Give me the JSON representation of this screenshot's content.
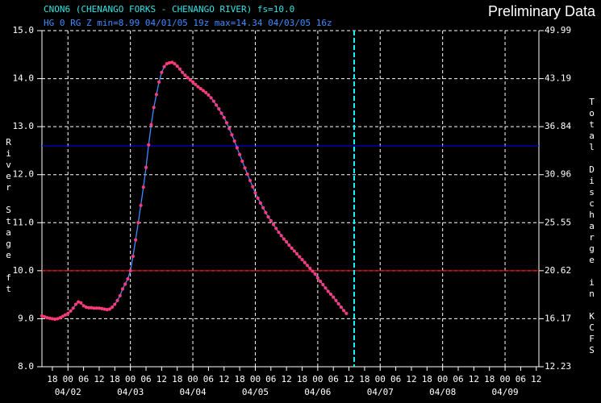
{
  "chart_data": {
    "type": "line",
    "title": "CNON6 (CHENANGO FORKS - CHENANGO RIVER) fs=10.0",
    "subtitle": "HG 0 RG Z min=8.99 04/01/05 19z max=14.34 04/03/05 16z",
    "watermark": "Preliminary Data",
    "ylabel": "River Stage ft",
    "y2label": "Total Discharge in KCFS",
    "xlim": [
      "04/01 14",
      "04/09 13"
    ],
    "ylim": [
      8,
      15
    ],
    "yticks": [
      {
        "value": 15,
        "label": "15.0"
      },
      {
        "value": 14,
        "label": "14.0"
      },
      {
        "value": 13,
        "label": "13.0"
      },
      {
        "value": 12,
        "label": "12.0"
      },
      {
        "value": 11,
        "label": "11.0"
      },
      {
        "value": 10,
        "label": "10.0"
      },
      {
        "value": 9,
        "label": "9.0"
      },
      {
        "value": 8,
        "label": "8.0"
      }
    ],
    "y2ticks": [
      49.99,
      43.19,
      36.84,
      30.96,
      25.55,
      20.62,
      16.17,
      12.23
    ],
    "xticks": [
      {
        "value": "04/01 18",
        "label": "18"
      },
      {
        "value": "04/02 00",
        "label": "00"
      },
      {
        "value": "04/02 06",
        "label": "06"
      },
      {
        "value": "04/02 12",
        "label": "12"
      },
      {
        "value": "04/02 18",
        "label": "18"
      },
      {
        "value": "04/03 00",
        "label": "00"
      },
      {
        "value": "04/03 06",
        "label": "06"
      },
      {
        "value": "04/03 12",
        "label": "12"
      },
      {
        "value": "04/03 18",
        "label": "18"
      },
      {
        "value": "04/04 00",
        "label": "00"
      },
      {
        "value": "04/04 06",
        "label": "06"
      },
      {
        "value": "04/04 12",
        "label": "12"
      },
      {
        "value": "04/04 18",
        "label": "18"
      },
      {
        "value": "04/05 00",
        "label": "00"
      },
      {
        "value": "04/05 06",
        "label": "06"
      },
      {
        "value": "04/05 12",
        "label": "12"
      },
      {
        "value": "04/05 18",
        "label": "18"
      },
      {
        "value": "04/06 00",
        "label": "00"
      },
      {
        "value": "04/06 06",
        "label": "06"
      },
      {
        "value": "04/06 12",
        "label": "12"
      },
      {
        "value": "04/06 18",
        "label": "18"
      },
      {
        "value": "04/07 00",
        "label": "00"
      },
      {
        "value": "04/07 06",
        "label": "06"
      },
      {
        "value": "04/07 12",
        "label": "12"
      },
      {
        "value": "04/07 18",
        "label": "18"
      },
      {
        "value": "04/08 00",
        "label": "00"
      },
      {
        "value": "04/08 06",
        "label": "06"
      },
      {
        "value": "04/08 12",
        "label": "12"
      },
      {
        "value": "04/08 18",
        "label": "18"
      },
      {
        "value": "04/09 00",
        "label": "00"
      },
      {
        "value": "04/09 06",
        "label": "06"
      },
      {
        "value": "04/09 12",
        "label": "12"
      }
    ],
    "date_ticks": [
      {
        "value": "04/02 00",
        "label": "04/02"
      },
      {
        "value": "04/03 00",
        "label": "04/03"
      },
      {
        "value": "04/04 00",
        "label": "04/04"
      },
      {
        "value": "04/05 00",
        "label": "04/05"
      },
      {
        "value": "04/06 00",
        "label": "04/06"
      },
      {
        "value": "04/07 00",
        "label": "04/07"
      },
      {
        "value": "04/08 00",
        "label": "04/08"
      },
      {
        "value": "04/09 00",
        "label": "04/09"
      }
    ],
    "grid": true,
    "threshold_lines": [
      {
        "value": 10,
        "color": "#ff0000"
      },
      {
        "value": 12.6,
        "color": "#0000ff"
      }
    ],
    "now_line": {
      "x": "04/06 14",
      "color": "#00ffff"
    },
    "series": [
      {
        "line_color": "#3f8cff",
        "color": "#ff3a78",
        "x": [
          "04/01 14",
          "04/01 15",
          "04/01 16",
          "04/01 17",
          "04/01 18",
          "04/01 19",
          "04/01 20",
          "04/01 21",
          "04/01 22",
          "04/01 23",
          "04/02 00",
          "04/02 01",
          "04/02 02",
          "04/02 03",
          "04/02 04",
          "04/02 05",
          "04/02 06",
          "04/02 07",
          "04/02 08",
          "04/02 09",
          "04/02 10",
          "04/02 11",
          "04/02 12",
          "04/02 13",
          "04/02 14",
          "04/02 15",
          "04/02 16",
          "04/02 17",
          "04/02 18",
          "04/02 19",
          "04/02 20",
          "04/02 21",
          "04/02 22",
          "04/02 23",
          "04/03 00",
          "04/03 01",
          "04/03 02",
          "04/03 03",
          "04/03 04",
          "04/03 05",
          "04/03 06",
          "04/03 07",
          "04/03 08",
          "04/03 09",
          "04/03 10",
          "04/03 11",
          "04/03 12",
          "04/03 13",
          "04/03 14",
          "04/03 15",
          "04/03 16",
          "04/03 17",
          "04/03 18",
          "04/03 19",
          "04/03 20",
          "04/03 21",
          "04/03 22",
          "04/03 23",
          "04/04 00",
          "04/04 01",
          "04/04 02",
          "04/04 03",
          "04/04 04",
          "04/04 05",
          "04/04 06",
          "04/04 07",
          "04/04 08",
          "04/04 09",
          "04/04 10",
          "04/04 11",
          "04/04 12",
          "04/04 13",
          "04/04 14",
          "04/04 15",
          "04/04 16",
          "04/04 17",
          "04/04 18",
          "04/04 19",
          "04/04 20",
          "04/04 21",
          "04/04 22",
          "04/04 23",
          "04/05 00",
          "04/05 01",
          "04/05 02",
          "04/05 03",
          "04/05 04",
          "04/05 05",
          "04/05 06",
          "04/05 07",
          "04/05 08",
          "04/05 09",
          "04/05 10",
          "04/05 11",
          "04/05 12",
          "04/05 13",
          "04/05 14",
          "04/05 15",
          "04/05 16",
          "04/05 17",
          "04/05 18",
          "04/05 19",
          "04/05 20",
          "04/05 21",
          "04/05 22",
          "04/05 23",
          "04/06 00",
          "04/06 01",
          "04/06 02",
          "04/06 03",
          "04/06 04",
          "04/06 05",
          "04/06 06",
          "04/06 07",
          "04/06 08",
          "04/06 09",
          "04/06 10",
          "04/06 11"
        ],
        "values": [
          9.06,
          9.04,
          9.02,
          9.01,
          9.0,
          8.99,
          9.0,
          9.02,
          9.05,
          9.08,
          9.11,
          9.16,
          9.22,
          9.3,
          9.35,
          9.33,
          9.27,
          9.24,
          9.23,
          9.23,
          9.22,
          9.22,
          9.22,
          9.21,
          9.2,
          9.19,
          9.2,
          9.24,
          9.3,
          9.38,
          9.48,
          9.62,
          9.72,
          9.83,
          10.0,
          10.3,
          10.64,
          11.0,
          11.36,
          11.74,
          12.15,
          12.62,
          13.04,
          13.4,
          13.67,
          13.93,
          14.13,
          14.25,
          14.31,
          14.33,
          14.34,
          14.31,
          14.26,
          14.2,
          14.13,
          14.07,
          14.02,
          13.97,
          13.93,
          13.88,
          13.83,
          13.79,
          13.75,
          13.71,
          13.66,
          13.6,
          13.53,
          13.45,
          13.37,
          13.28,
          13.19,
          13.08,
          12.96,
          12.83,
          12.7,
          12.56,
          12.42,
          12.28,
          12.14,
          12.01,
          11.88,
          11.75,
          11.62,
          11.51,
          11.41,
          11.31,
          11.21,
          11.12,
          11.04,
          10.96,
          10.88,
          10.8,
          10.73,
          10.66,
          10.6,
          10.53,
          10.47,
          10.41,
          10.35,
          10.29,
          10.23,
          10.17,
          10.11,
          10.05,
          9.99,
          9.93,
          9.85,
          9.78,
          9.71,
          9.64,
          9.57,
          9.51,
          9.45,
          9.38,
          9.31,
          9.24,
          9.17,
          9.11
        ]
      }
    ]
  }
}
